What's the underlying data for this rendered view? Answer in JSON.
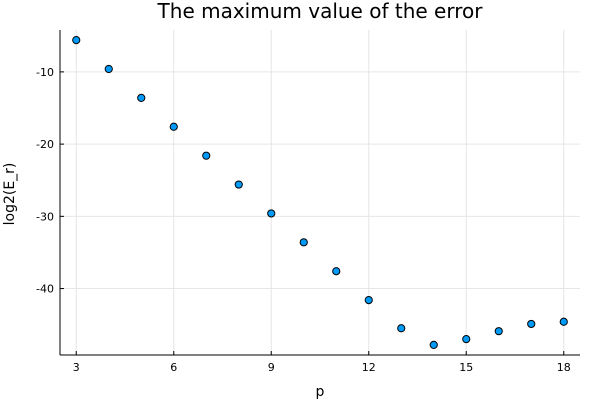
{
  "chart_data": {
    "type": "scatter",
    "title": "The maximum value of the error",
    "xlabel": "p",
    "ylabel": "log2(E_r)",
    "x": [
      3,
      4,
      5,
      6,
      7,
      8,
      9,
      10,
      11,
      12,
      13,
      14,
      15,
      16,
      17,
      18
    ],
    "y": [
      -5.6,
      -9.6,
      -13.6,
      -17.6,
      -21.6,
      -25.6,
      -29.6,
      -33.6,
      -37.6,
      -41.6,
      -45.5,
      -47.8,
      -47.0,
      -45.9,
      -44.9,
      -44.6
    ],
    "xlim": [
      2.5,
      18.5
    ],
    "ylim": [
      -49.2,
      -4.2
    ],
    "xticks": [
      3,
      6,
      9,
      12,
      15,
      18
    ],
    "xtick_labels": [
      "3",
      "6",
      "9",
      "12",
      "15",
      "18"
    ],
    "yticks": [
      -10,
      -20,
      -30,
      -40
    ],
    "ytick_labels": [
      "-10",
      "-20",
      "-30",
      "-40"
    ],
    "grid": true,
    "legend": "none",
    "marker_color": "#009af9"
  }
}
